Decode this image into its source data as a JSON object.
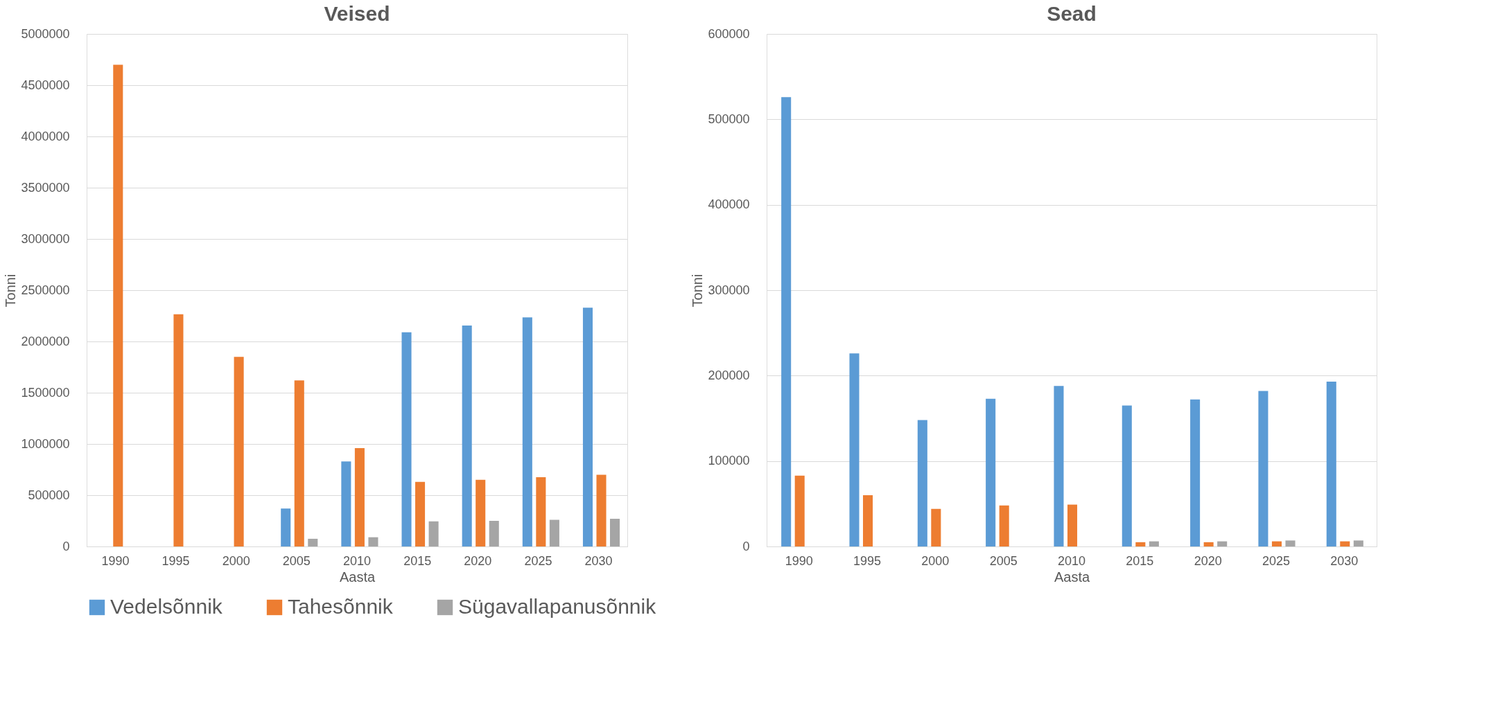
{
  "chart_data": [
    {
      "type": "bar",
      "title": "Veised",
      "xlabel": "Aasta",
      "ylabel": "Tonni",
      "categories": [
        "1990",
        "1995",
        "2000",
        "2005",
        "2010",
        "2015",
        "2020",
        "2025",
        "2030"
      ],
      "series": [
        {
          "name": "Vedelsõnnik",
          "color": "#5b9bd5",
          "values": [
            null,
            null,
            null,
            370000,
            830000,
            2090000,
            2155000,
            2235000,
            2330000
          ]
        },
        {
          "name": "Tahesõnnik",
          "color": "#ed7d31",
          "values": [
            4700000,
            2265000,
            1850000,
            1620000,
            960000,
            630000,
            650000,
            675000,
            700000
          ]
        },
        {
          "name": "Sügavallapanusõnnik",
          "color": "#a5a5a5",
          "values": [
            null,
            null,
            null,
            75000,
            90000,
            245000,
            250000,
            260000,
            270000
          ]
        }
      ],
      "ylim": [
        0,
        5000000
      ],
      "yticks": [
        0,
        500000,
        1000000,
        1500000,
        2000000,
        2500000,
        3000000,
        3500000,
        4000000,
        4500000,
        5000000
      ],
      "grid": "y",
      "legend": "bottom"
    },
    {
      "type": "bar",
      "title": "Sead",
      "xlabel": "Aasta",
      "ylabel": "Tonni",
      "categories": [
        "1990",
        "1995",
        "2000",
        "2005",
        "2010",
        "2015",
        "2020",
        "2025",
        "2030"
      ],
      "series": [
        {
          "color": "#5b9bd5",
          "values": [
            526000,
            226000,
            148000,
            173000,
            188000,
            165000,
            172000,
            182000,
            193000
          ]
        },
        {
          "color": "#ed7d31",
          "values": [
            83000,
            60000,
            44000,
            48000,
            49000,
            5000,
            5000,
            6000,
            6000
          ]
        },
        {
          "color": "#a5a5a5",
          "values": [
            null,
            null,
            null,
            null,
            null,
            6000,
            6000,
            7000,
            7000
          ]
        }
      ],
      "ylim": [
        0,
        600000
      ],
      "yticks": [
        0,
        100000,
        200000,
        300000,
        400000,
        500000,
        600000
      ],
      "grid": "y",
      "legend": false
    }
  ]
}
